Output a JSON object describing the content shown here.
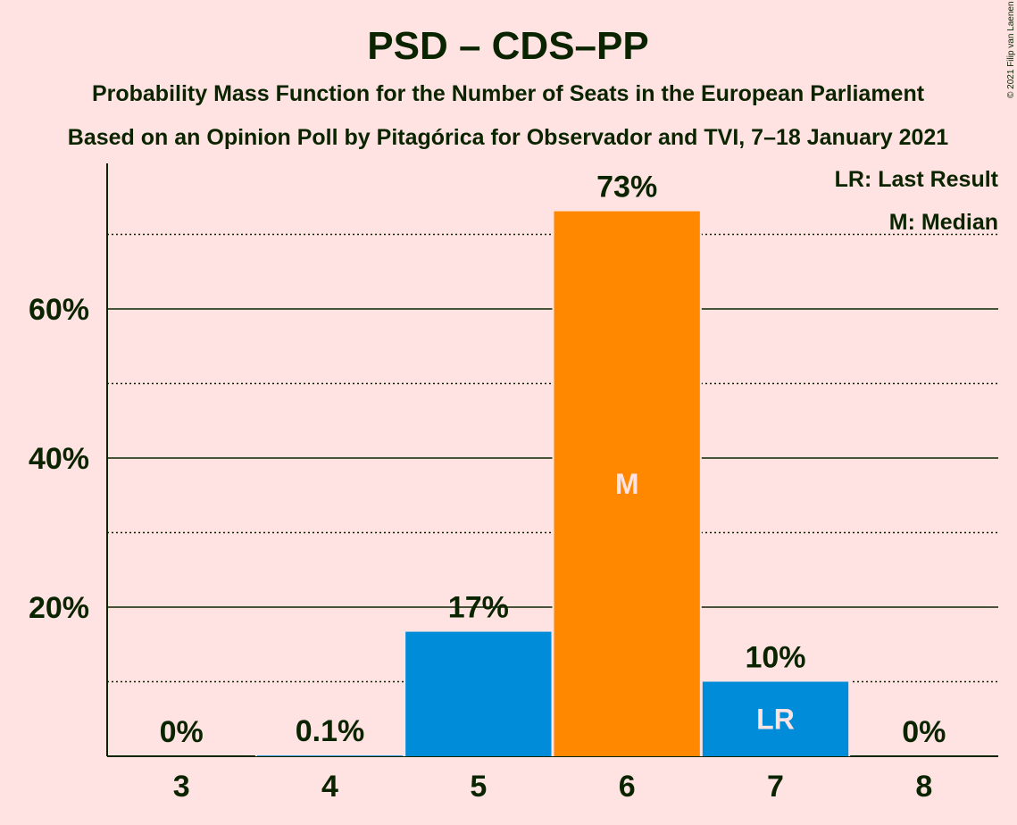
{
  "chart_data": {
    "type": "bar",
    "title": "PSD – CDS–PP",
    "subtitle": "Probability Mass Function for the Number of Seats in the European Parliament",
    "subtitle2": "Based on an Opinion Poll by Pitagórica for Observador and TVI, 7–18 January 2021",
    "copyright": "© 2021 Filip van Laenen",
    "categories": [
      "3",
      "4",
      "5",
      "6",
      "7",
      "8"
    ],
    "values": [
      0,
      0.1,
      16.7,
      73.1,
      10.0,
      0
    ],
    "data_labels": [
      "0%",
      "0.1%",
      "17%",
      "73%",
      "10%",
      "0%"
    ],
    "bar_colors": [
      "#008CD9",
      "#008CD9",
      "#008CD9",
      "#FF8800",
      "#008CD9",
      "#008CD9"
    ],
    "in_bar_labels": [
      "",
      "",
      "",
      "M",
      "LR",
      ""
    ],
    "yticks": [
      20,
      40,
      60
    ],
    "ytick_labels": [
      "20%",
      "40%",
      "60%"
    ],
    "minor_gridlines": [
      10,
      30,
      50,
      70
    ],
    "ylim": [
      0,
      80
    ],
    "grid": true,
    "legend": {
      "position": "top-right",
      "entries": [
        "LR: Last Result",
        "M: Median"
      ]
    },
    "colors": {
      "background": "#FFE2E2",
      "text": "#0A2400",
      "median_bar": "#FF8800",
      "other_bar": "#008CD9",
      "in_bar_text": "#FFE2E2"
    }
  }
}
